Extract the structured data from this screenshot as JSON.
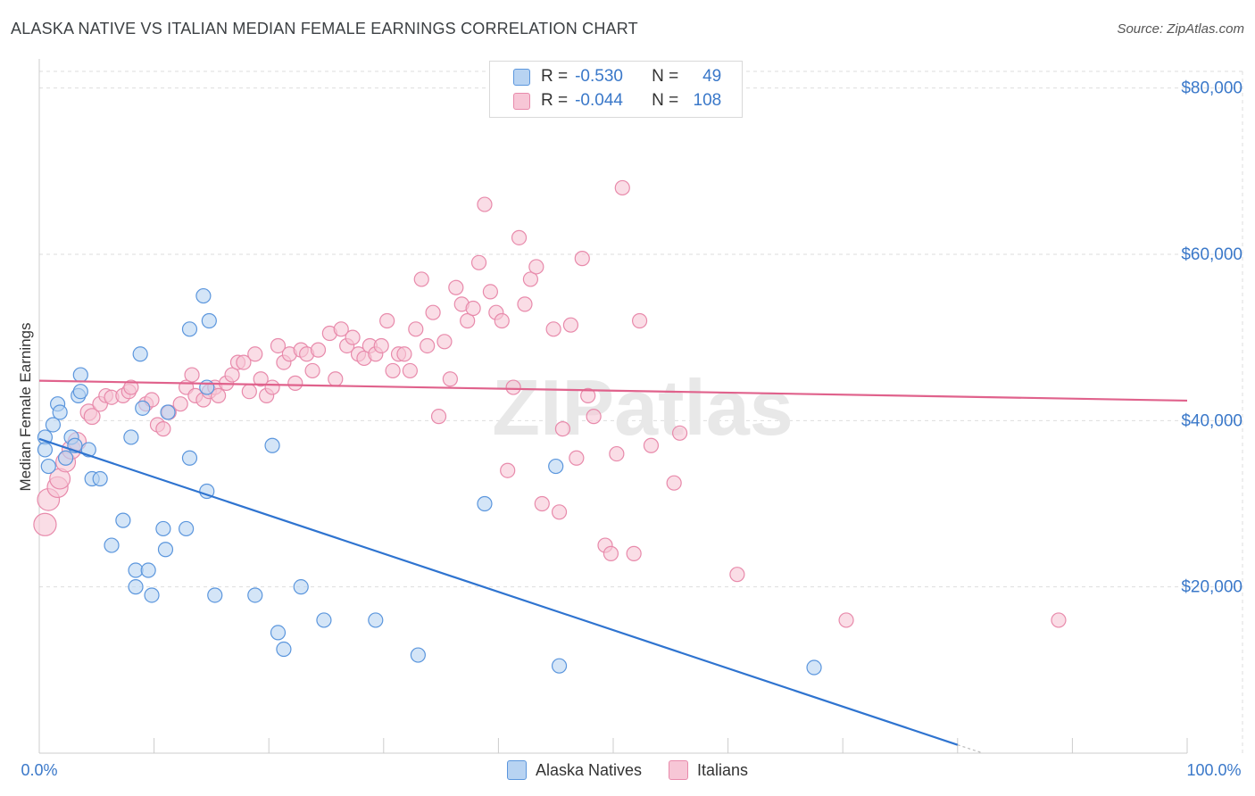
{
  "title": "ALASKA NATIVE VS ITALIAN MEDIAN FEMALE EARNINGS CORRELATION CHART",
  "source": "Source: ZipAtlas.com",
  "watermark": "ZIPatlas",
  "legend_top": [
    {
      "r_label": "R =",
      "r_value": "-0.530",
      "n_label": "N =",
      "n_value": "49"
    },
    {
      "r_label": "R =",
      "r_value": "-0.044",
      "n_label": "N =",
      "n_value": "108"
    }
  ],
  "colors": {
    "blue_fill": "#b8d3f2",
    "blue_stroke": "#5b96dd",
    "blue_line": "#2f74d0",
    "pink_fill": "#f7c6d6",
    "pink_stroke": "#e88aab",
    "pink_line": "#e0628c",
    "axis_text": "#3a78c9",
    "grid": "#dddddd"
  },
  "chart_data": {
    "type": "scatter",
    "title": "ALASKA NATIVE VS ITALIAN MEDIAN FEMALE EARNINGS CORRELATION CHART",
    "xlabel": "",
    "ylabel": "Median Female Earnings",
    "xlim": [
      0,
      100
    ],
    "ylim": [
      0,
      82000
    ],
    "x_tick_labels": [
      "0.0%",
      "100.0%"
    ],
    "y_ticks": [
      20000,
      40000,
      60000,
      80000
    ],
    "y_tick_labels": [
      "$20,000",
      "$40,000",
      "$60,000",
      "$80,000"
    ],
    "grid": true,
    "legend": "bottom-center",
    "series": [
      {
        "name": "Alaska Natives",
        "r": -0.53,
        "n": 49,
        "trend": {
          "x": [
            0,
            80
          ],
          "y": [
            37800,
            1000
          ]
        },
        "points": [
          [
            0.5,
            38000
          ],
          [
            0.5,
            36500
          ],
          [
            0.8,
            34500
          ],
          [
            1.2,
            39500
          ],
          [
            1.6,
            42000
          ],
          [
            1.8,
            41000
          ],
          [
            2.3,
            35500
          ],
          [
            2.8,
            38000
          ],
          [
            3.1,
            37000
          ],
          [
            3.4,
            43000
          ],
          [
            3.6,
            43500
          ],
          [
            3.6,
            45500
          ],
          [
            4.3,
            36500
          ],
          [
            4.6,
            33000
          ],
          [
            5.3,
            33000
          ],
          [
            6.3,
            25000
          ],
          [
            7.3,
            28000
          ],
          [
            8.0,
            38000
          ],
          [
            8.4,
            22000
          ],
          [
            8.4,
            20000
          ],
          [
            8.8,
            48000
          ],
          [
            9.0,
            41500
          ],
          [
            9.5,
            22000
          ],
          [
            9.8,
            19000
          ],
          [
            10.8,
            27000
          ],
          [
            11.0,
            24500
          ],
          [
            11.2,
            41000
          ],
          [
            12.8,
            27000
          ],
          [
            13.1,
            35500
          ],
          [
            13.1,
            51000
          ],
          [
            14.3,
            55000
          ],
          [
            14.6,
            44000
          ],
          [
            14.6,
            31500
          ],
          [
            14.8,
            52000
          ],
          [
            15.3,
            19000
          ],
          [
            18.8,
            19000
          ],
          [
            20.3,
            37000
          ],
          [
            20.8,
            14500
          ],
          [
            21.3,
            12500
          ],
          [
            22.8,
            20000
          ],
          [
            24.8,
            16000
          ],
          [
            29.3,
            16000
          ],
          [
            33.0,
            11800
          ],
          [
            38.8,
            30000
          ],
          [
            45.0,
            34500
          ],
          [
            45.3,
            10500
          ],
          [
            67.5,
            10300
          ]
        ]
      },
      {
        "name": "Italians",
        "r": -0.044,
        "n": 108,
        "trend": {
          "x": [
            0,
            100
          ],
          "y": [
            44800,
            42400
          ]
        },
        "points": [
          [
            0.5,
            27500
          ],
          [
            0.8,
            30500
          ],
          [
            1.6,
            32000
          ],
          [
            1.8,
            33000
          ],
          [
            2.3,
            35000
          ],
          [
            2.8,
            36500
          ],
          [
            3.3,
            37500
          ],
          [
            4.3,
            41000
          ],
          [
            4.6,
            40500
          ],
          [
            5.3,
            42000
          ],
          [
            5.8,
            43000
          ],
          [
            6.3,
            42800
          ],
          [
            7.3,
            43000
          ],
          [
            7.8,
            43500
          ],
          [
            8.0,
            44000
          ],
          [
            9.3,
            42000
          ],
          [
            9.8,
            42500
          ],
          [
            10.3,
            39500
          ],
          [
            10.8,
            39000
          ],
          [
            11.3,
            41000
          ],
          [
            12.3,
            42000
          ],
          [
            12.8,
            44000
          ],
          [
            13.3,
            45500
          ],
          [
            13.6,
            43000
          ],
          [
            14.3,
            42500
          ],
          [
            14.8,
            43500
          ],
          [
            15.3,
            44000
          ],
          [
            15.6,
            43000
          ],
          [
            16.3,
            44500
          ],
          [
            16.8,
            45500
          ],
          [
            17.3,
            47000
          ],
          [
            17.8,
            47000
          ],
          [
            18.3,
            43500
          ],
          [
            18.8,
            48000
          ],
          [
            19.3,
            45000
          ],
          [
            19.8,
            43000
          ],
          [
            20.3,
            44000
          ],
          [
            20.8,
            49000
          ],
          [
            21.3,
            47000
          ],
          [
            21.8,
            48000
          ],
          [
            22.3,
            44500
          ],
          [
            22.8,
            48500
          ],
          [
            23.3,
            48000
          ],
          [
            23.8,
            46000
          ],
          [
            24.3,
            48500
          ],
          [
            25.3,
            50500
          ],
          [
            25.8,
            45000
          ],
          [
            26.3,
            51000
          ],
          [
            26.8,
            49000
          ],
          [
            27.3,
            50000
          ],
          [
            27.8,
            48000
          ],
          [
            28.3,
            47500
          ],
          [
            28.8,
            49000
          ],
          [
            29.3,
            48000
          ],
          [
            29.8,
            49000
          ],
          [
            30.3,
            52000
          ],
          [
            30.8,
            46000
          ],
          [
            31.3,
            48000
          ],
          [
            31.8,
            48000
          ],
          [
            32.3,
            46000
          ],
          [
            32.8,
            51000
          ],
          [
            33.3,
            57000
          ],
          [
            33.8,
            49000
          ],
          [
            34.3,
            53000
          ],
          [
            34.8,
            40500
          ],
          [
            35.3,
            49500
          ],
          [
            35.8,
            45000
          ],
          [
            36.3,
            56000
          ],
          [
            36.8,
            54000
          ],
          [
            37.3,
            52000
          ],
          [
            37.8,
            53500
          ],
          [
            38.3,
            59000
          ],
          [
            38.8,
            66000
          ],
          [
            39.3,
            55500
          ],
          [
            39.8,
            53000
          ],
          [
            40.3,
            52000
          ],
          [
            40.8,
            34000
          ],
          [
            41.3,
            44000
          ],
          [
            41.8,
            62000
          ],
          [
            42.3,
            54000
          ],
          [
            42.8,
            57000
          ],
          [
            43.3,
            58500
          ],
          [
            43.8,
            30000
          ],
          [
            44.8,
            51000
          ],
          [
            45.3,
            29000
          ],
          [
            45.6,
            39000
          ],
          [
            46.3,
            51500
          ],
          [
            46.8,
            35500
          ],
          [
            47.3,
            59500
          ],
          [
            47.8,
            43000
          ],
          [
            48.3,
            40500
          ],
          [
            49.3,
            25000
          ],
          [
            49.8,
            24000
          ],
          [
            50.3,
            36000
          ],
          [
            50.8,
            68000
          ],
          [
            51.8,
            24000
          ],
          [
            52.3,
            52000
          ],
          [
            53.3,
            37000
          ],
          [
            55.3,
            32500
          ],
          [
            55.8,
            38500
          ],
          [
            60.8,
            21500
          ],
          [
            70.3,
            16000
          ],
          [
            88.8,
            16000
          ]
        ]
      }
    ]
  }
}
